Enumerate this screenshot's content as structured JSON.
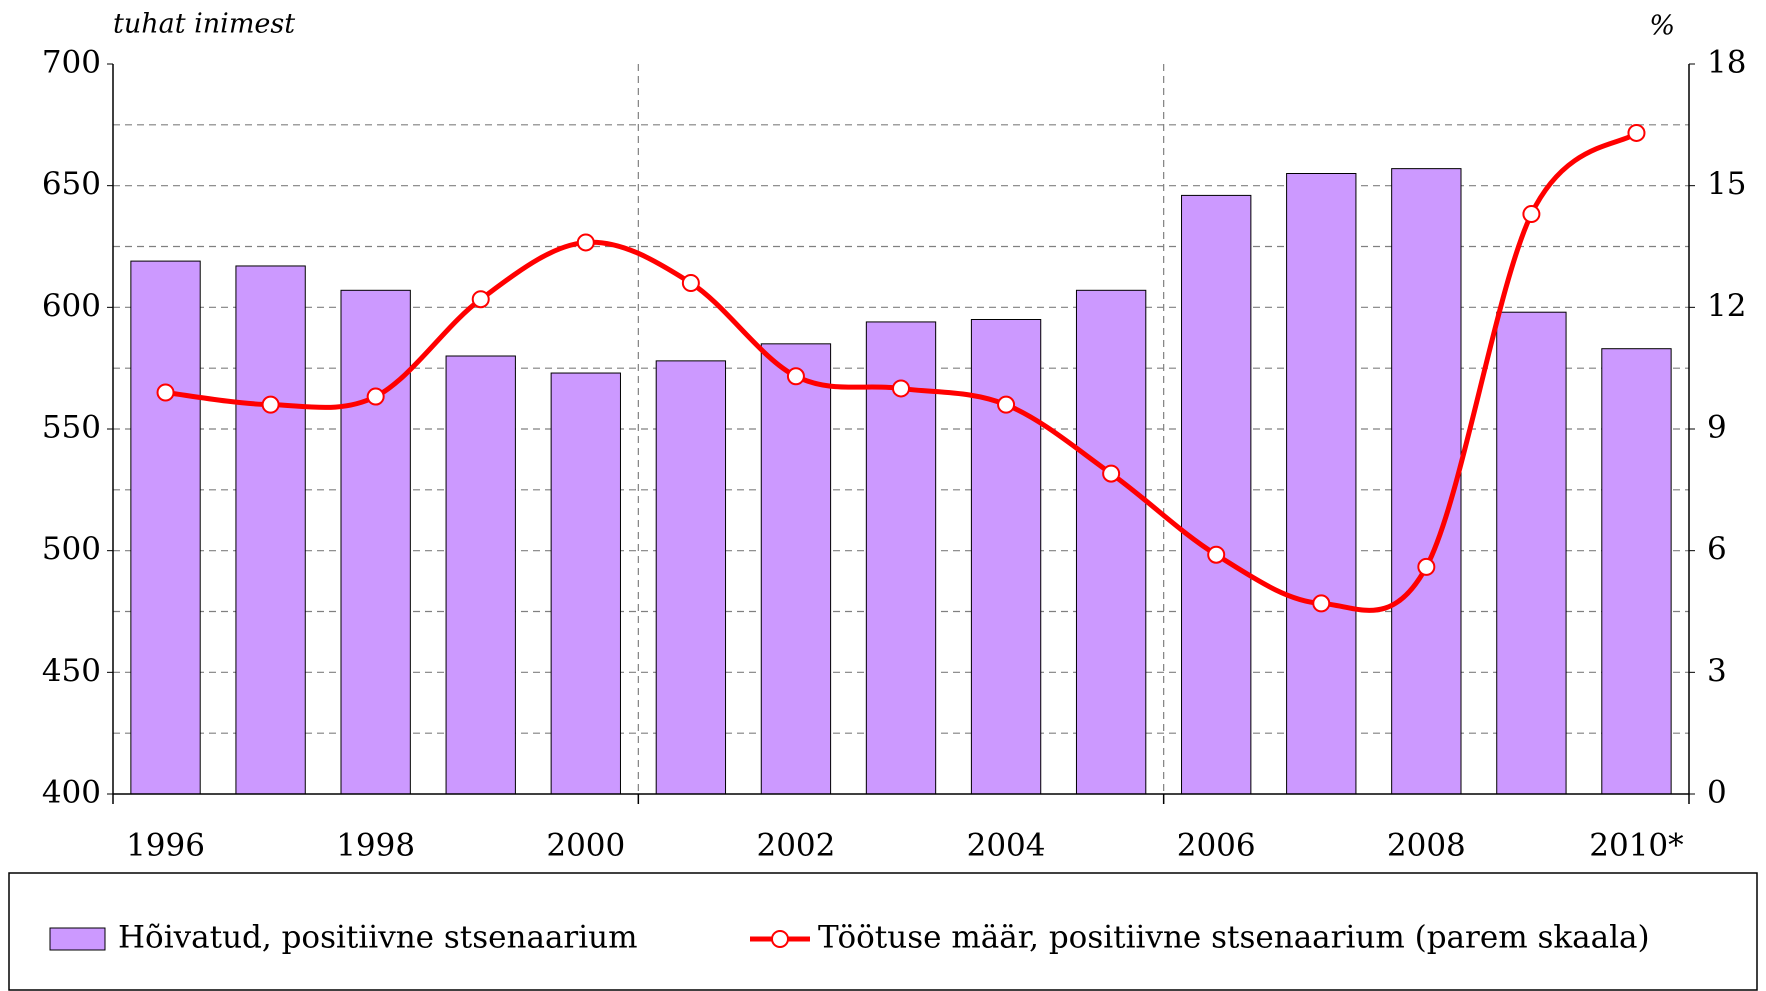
{
  "chart_data": {
    "type": "bar_line",
    "y_label": "tuhat  inimest",
    "y2_label": "%",
    "categories": [
      "1996",
      null,
      "1998",
      null,
      "2000",
      null,
      "2002",
      null,
      "2004",
      null,
      "2006",
      null,
      "2008",
      null,
      "2010*"
    ],
    "series": [
      {
        "name": "Hõivatud, positiivne stsenaarium",
        "type": "bar",
        "color": "#cc99ff",
        "values": [
          619,
          617,
          607,
          580,
          573,
          578,
          585,
          594,
          595,
          607,
          646,
          655,
          657,
          598,
          583
        ]
      },
      {
        "name": "Töötuse määr, positiivne stsenaarium (parem skaala)",
        "type": "line",
        "axis": "y2",
        "color": "#ff0000",
        "values": [
          9.9,
          9.6,
          9.8,
          12.2,
          13.6,
          12.6,
          10.3,
          10.0,
          9.6,
          7.9,
          5.9,
          4.7,
          5.6,
          14.3,
          16.3
        ]
      }
    ],
    "ylim": [
      400,
      700
    ],
    "yticks": [
      400,
      450,
      500,
      550,
      600,
      650,
      700
    ],
    "y_minor_ticks": [
      425,
      475,
      525,
      575,
      625,
      675
    ],
    "y2lim": [
      0,
      18
    ],
    "y2ticks": [
      0,
      3,
      6,
      9,
      12,
      15,
      18
    ],
    "grid": true,
    "legend": "bottom"
  }
}
